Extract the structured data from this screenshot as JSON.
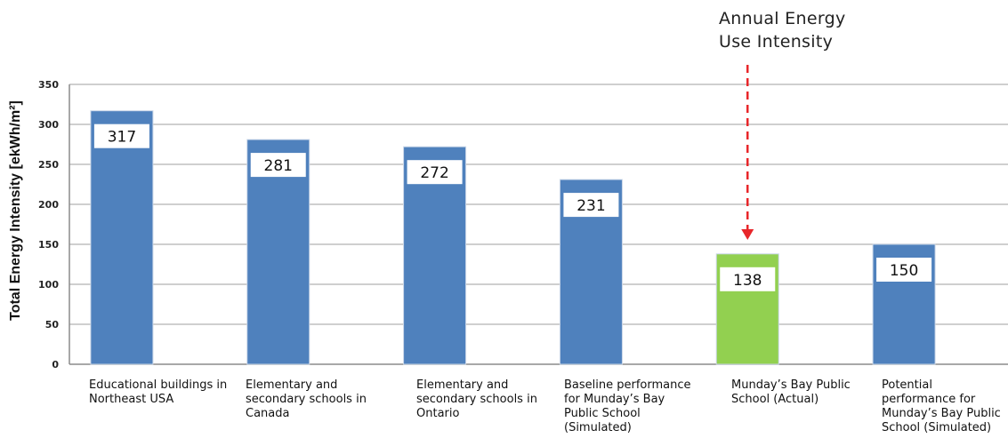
{
  "chart_data": {
    "type": "bar",
    "ylabel": "Total Energy Intensity [ekWh/m²]",
    "ylim": [
      0,
      350
    ],
    "yticks": [
      "0",
      "50",
      "100",
      "150",
      "200",
      "250",
      "300",
      "350"
    ],
    "grid": true,
    "annotation": "Annual Energy Use Intensity",
    "categories": [
      "Educational buildings in Northeast USA",
      "Elementary and secondary schools in Canada",
      "Elementary and secondary schools in Ontario",
      "Baseline performance for Munday’s Bay Public School (Simulated)",
      "Munday’s Bay Public School (Actual)",
      "Potential performance for Munday’s Bay Public School (Simulated)"
    ],
    "values": [
      317,
      281,
      272,
      231,
      138,
      150
    ],
    "data_labels": [
      "317",
      "281",
      "272",
      "231",
      "138",
      "150"
    ],
    "colors": [
      "#4f81bd",
      "#4f81bd",
      "#4f81bd",
      "#4f81bd",
      "#92d050",
      "#4f81bd"
    ],
    "annotation_arrow_color": "#e8262a"
  }
}
